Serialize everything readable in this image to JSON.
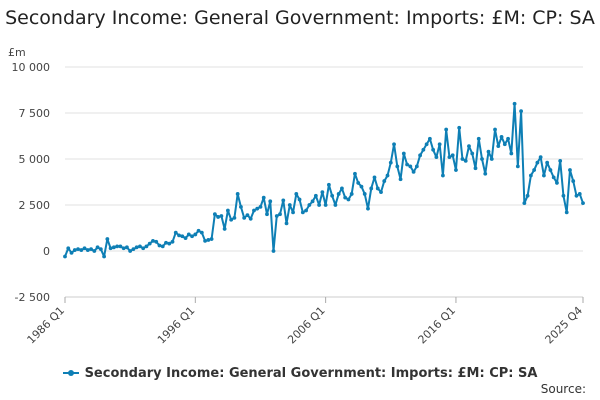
{
  "chart_data": {
    "type": "line",
    "title": "Secondary Income: General Government: Imports: £M: CP: SA",
    "ylabel": "£m",
    "xlabel": "",
    "ylim": [
      -2500,
      10000
    ],
    "yticks": [
      -2500,
      0,
      2500,
      5000,
      7500,
      10000
    ],
    "ytick_labels": [
      "-2 500",
      "0",
      "2 500",
      "5 000",
      "7 500",
      "10 000"
    ],
    "xtick_labels": [
      "1986 Q1",
      "1996 Q1",
      "2006 Q1",
      "2016 Q1",
      "2025 Q4"
    ],
    "xtick_index": [
      0,
      40,
      80,
      120,
      159
    ],
    "grid": "horizontal",
    "legend_position": "bottom",
    "color": "#0e7fb5",
    "series": [
      {
        "name": "Secondary Income: General Government: Imports: £M: CP: SA",
        "values": [
          -300,
          150,
          -100,
          50,
          100,
          50,
          150,
          50,
          100,
          0,
          200,
          100,
          -300,
          650,
          150,
          200,
          250,
          250,
          150,
          200,
          0,
          100,
          200,
          250,
          150,
          250,
          400,
          550,
          500,
          300,
          250,
          450,
          400,
          500,
          1000,
          850,
          800,
          700,
          900,
          800,
          900,
          1100,
          1000,
          550,
          600,
          650,
          2000,
          1850,
          1900,
          1200,
          2200,
          1700,
          1800,
          3100,
          2400,
          1800,
          1950,
          1750,
          2200,
          2300,
          2400,
          2900,
          2000,
          2700,
          0,
          1900,
          2000,
          2750,
          1500,
          2500,
          2100,
          3100,
          2800,
          2100,
          2200,
          2500,
          2700,
          3000,
          2500,
          3200,
          2500,
          3600,
          3000,
          2500,
          3100,
          3400,
          2900,
          2800,
          3100,
          4200,
          3700,
          3500,
          3100,
          2300,
          3400,
          4000,
          3400,
          3200,
          3800,
          4100,
          4800,
          5800,
          4600,
          3900,
          5300,
          4700,
          4600,
          4300,
          4600,
          5200,
          5500,
          5800,
          6100,
          5500,
          5100,
          5800,
          4100,
          6600,
          5100,
          5200,
          4400,
          6700,
          5000,
          4900,
          5700,
          5300,
          4500,
          6100,
          5000,
          4200,
          5400,
          5000,
          6600,
          5700,
          6200,
          5800,
          6100,
          5300,
          8000,
          4600,
          7600,
          2600,
          3000,
          4100,
          4400,
          4800,
          5100,
          4100,
          4800,
          4400,
          4000,
          3700,
          4900,
          3000,
          2100,
          4400,
          3800,
          3000,
          3100,
          2600
        ]
      }
    ],
    "source_label": "Source:"
  }
}
